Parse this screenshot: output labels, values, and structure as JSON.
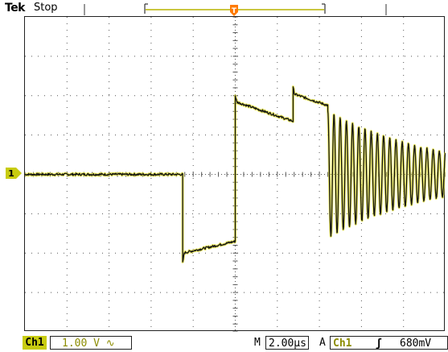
{
  "header": {
    "brand": "Tek",
    "status": "Stop"
  },
  "markers": {
    "trigger_pos": "T",
    "channel1": "1"
  },
  "bottom_bar": {
    "channel_label": "Ch1",
    "volts_per_div": "1.00 V",
    "coupling_symbol": "∿",
    "timebase_prefix": "M",
    "timebase": "2.00µs",
    "trigger_mode": "A",
    "trigger_source": "Ch1",
    "trigger_slope": "ʃ",
    "trigger_level": "680mV"
  },
  "colors": {
    "trace": "#141414",
    "trace_glow": "#e8e640",
    "channel": "#c8cc10",
    "trigger": "#ff7a00",
    "grid": "#555555"
  },
  "chart_data": {
    "type": "line",
    "divisions": {
      "x": 10,
      "y": 8
    },
    "units": {
      "x": "µs",
      "y": "V"
    },
    "xlim": [
      -10,
      10
    ],
    "ylim": [
      -4,
      4
    ],
    "segments": [
      {
        "x_start": -10,
        "x_end": -2.5,
        "v_start": 0.0,
        "v_end": 0.0
      },
      {
        "x_start": -2.5,
        "x_end": 0.0,
        "v_start": -2.0,
        "v_end": -1.7
      },
      {
        "x_start": 0.0,
        "x_end": 2.75,
        "v_start": 1.85,
        "v_end": 1.35
      },
      {
        "x_start": 2.75,
        "x_end": 4.4,
        "v_start": 2.05,
        "v_end": 1.75
      }
    ],
    "ringing": {
      "x_start": 4.4,
      "x_end": 10.0,
      "center": 0.0,
      "amplitude_start": 1.6,
      "amplitude_end": 0.55,
      "cycles": 19
    }
  }
}
